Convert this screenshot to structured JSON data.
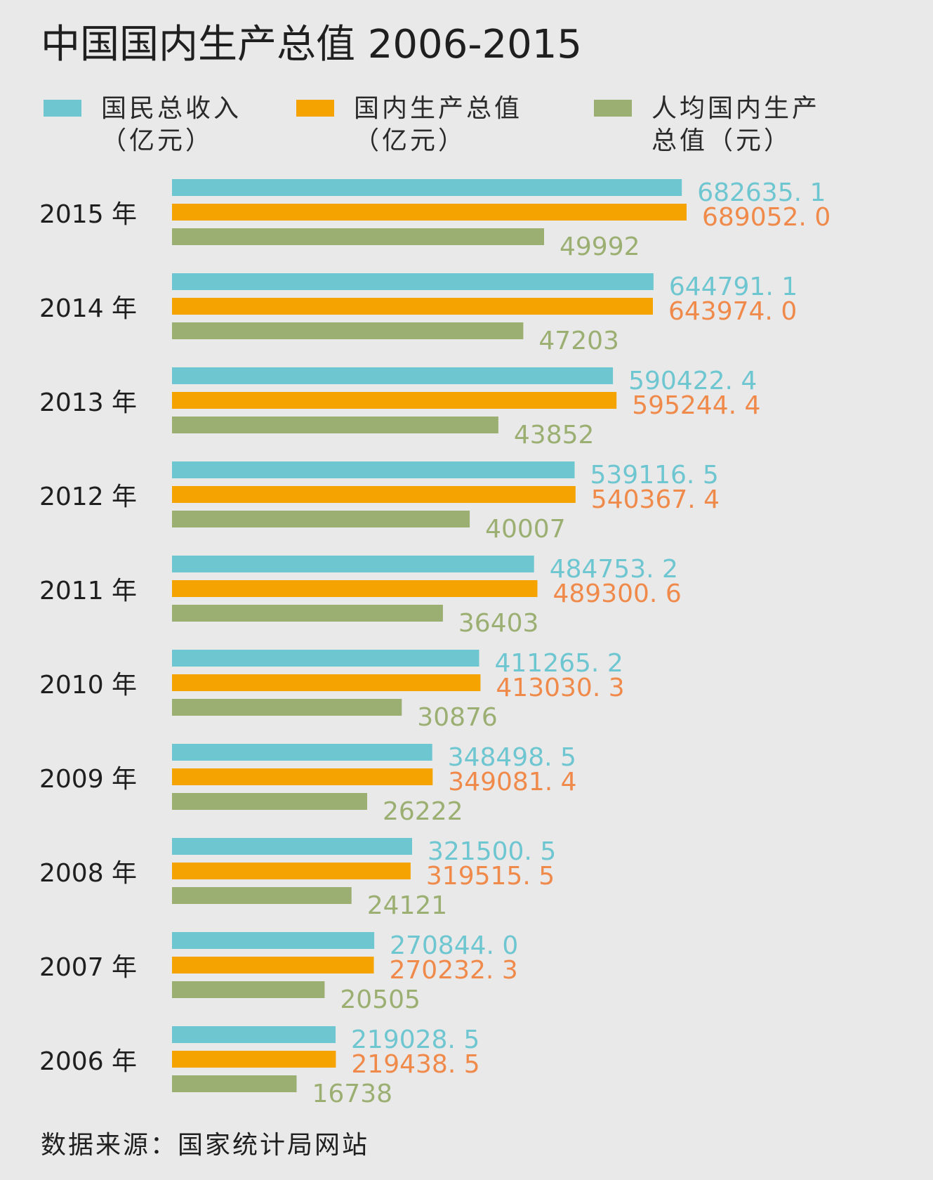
{
  "title": "中国国内生产总值 2006-2015",
  "legend": [
    {
      "line1": "国民总收入",
      "line2": "（亿元）",
      "color": "#6ec6d1"
    },
    {
      "line1": "国内生产总值",
      "line2": "（亿元）",
      "color": "#f5a300"
    },
    {
      "line1": "人均国内生产",
      "line2": "总值（元）",
      "color": "#9caf72"
    }
  ],
  "source": "数据来源：国家统计局网站",
  "chart_data": {
    "type": "bar",
    "orientation": "horizontal",
    "title": "中国国内生产总值 2006-2015",
    "categories": [
      "2015 年",
      "2014 年",
      "2013 年",
      "2012 年",
      "2011 年",
      "2010 年",
      "2009 年",
      "2008 年",
      "2007 年",
      "2006 年"
    ],
    "series": [
      {
        "name": "国民总收入（亿元）",
        "color": "#6ec6d1",
        "label_color": "#6ec6d1",
        "values": [
          682635.1,
          644791.1,
          590422.4,
          539116.5,
          484753.2,
          411265.2,
          348498.5,
          321500.5,
          270844.0,
          219028.5
        ],
        "labels": [
          "682635. 1",
          "644791. 1",
          "590422. 4",
          "539116. 5",
          "484753. 2",
          "411265. 2",
          "348498. 5",
          "321500. 5",
          "270844. 0",
          "219028. 5"
        ]
      },
      {
        "name": "国内生产总值（亿元）",
        "color": "#f5a300",
        "label_color": "#f08a4b",
        "values": [
          689052.0,
          643974.0,
          595244.4,
          540367.4,
          489300.6,
          413030.3,
          349081.4,
          319515.5,
          270232.3,
          219438.5
        ],
        "labels": [
          "689052. 0",
          "643974. 0",
          "595244. 4",
          "540367. 4",
          "489300. 6",
          "413030. 3",
          "349081. 4",
          "319515. 5",
          "270232. 3",
          "219438. 5"
        ]
      },
      {
        "name": "人均国内生产总值（元）",
        "color": "#9caf72",
        "label_color": "#9caf72",
        "values": [
          49992,
          47203,
          43852,
          40007,
          36403,
          30876,
          26222,
          24121,
          20505,
          16738
        ],
        "labels": [
          "49992",
          "47203",
          "43852",
          "40007",
          "36403",
          "30876",
          "26222",
          "24121",
          "20505",
          "16738"
        ]
      }
    ],
    "legend_position": "top",
    "grid": false
  }
}
